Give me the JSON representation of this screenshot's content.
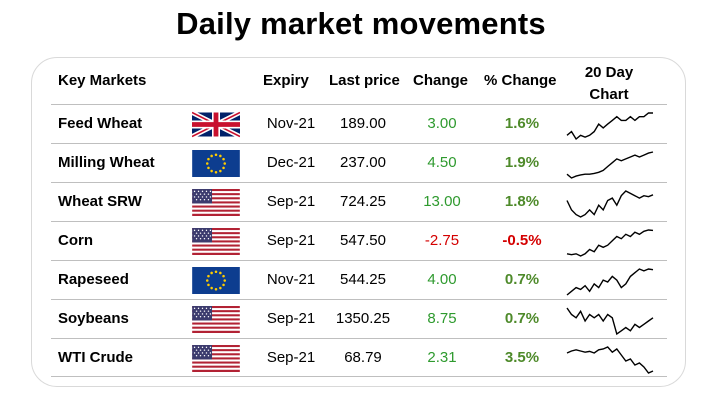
{
  "title": "Daily market movements",
  "headers": {
    "market": "Key Markets",
    "expiry": "Expiry",
    "price": "Last price",
    "change": "Change",
    "pct": "% Change",
    "chart_line1": "20 Day",
    "chart_line2": "Chart"
  },
  "colors": {
    "positive": "#2e9a2e",
    "negative": "#d40000",
    "spark": "#000000"
  },
  "rows": [
    {
      "name": "Feed Wheat",
      "flag": "uk-flag",
      "expiry": "Nov-21",
      "price": "189.00",
      "change": "3.00",
      "pct": "1.6%",
      "direction": "up",
      "trend": [
        2,
        3,
        1,
        2,
        1.5,
        2,
        3,
        5,
        4,
        5,
        6,
        7,
        6,
        6,
        7,
        6,
        7,
        7,
        8,
        8
      ]
    },
    {
      "name": "Milling Wheat",
      "flag": "eu-flag",
      "expiry": "Dec-21",
      "price": "237.00",
      "change": "4.50",
      "pct": "1.9%",
      "direction": "up",
      "trend": [
        2,
        1,
        1.5,
        1.8,
        2,
        2,
        2.2,
        2.5,
        3,
        4,
        5,
        6,
        5.5,
        6,
        6.5,
        7,
        6.5,
        7,
        7.5,
        7.8
      ]
    },
    {
      "name": "Wheat SRW",
      "flag": "us-flag",
      "expiry": "Sep-21",
      "price": "724.25",
      "change": "13.00",
      "pct": "1.8%",
      "direction": "up",
      "trend": [
        6,
        4,
        3,
        2.5,
        3,
        4,
        3,
        5,
        4,
        6,
        6.5,
        5,
        7,
        8,
        7.5,
        7,
        6.5,
        7,
        6.8,
        7.2
      ]
    },
    {
      "name": "Corn",
      "flag": "us-flag",
      "expiry": "Sep-21",
      "price": "547.50",
      "change": "-2.75",
      "pct": "-0.5%",
      "direction": "down",
      "trend": [
        2,
        1.8,
        2,
        1.5,
        2,
        3,
        2.5,
        4,
        3.5,
        4,
        5,
        6,
        5.5,
        6.5,
        6,
        7,
        6.5,
        7.2,
        7.5,
        7.4
      ]
    },
    {
      "name": "Rapeseed",
      "flag": "eu-flag",
      "expiry": "Nov-21",
      "price": "544.25",
      "change": "4.00",
      "pct": "0.7%",
      "direction": "up",
      "trend": [
        1,
        2,
        3,
        2.5,
        3.5,
        2,
        4,
        3,
        5,
        4.5,
        6,
        5,
        3,
        4,
        6,
        7,
        8,
        7.5,
        8,
        7.8
      ]
    },
    {
      "name": "Soybeans",
      "flag": "us-flag",
      "expiry": "Sep-21",
      "price": "1350.25",
      "change": "8.75",
      "pct": "0.7%",
      "direction": "up",
      "trend": [
        7,
        6,
        5.5,
        6.5,
        5,
        6,
        5.5,
        6,
        5,
        6,
        5.5,
        3,
        3.5,
        4,
        3.5,
        4.5,
        4,
        4.5,
        5,
        5.5
      ]
    },
    {
      "name": "WTI Crude",
      "flag": "us-flag",
      "expiry": "Sep-21",
      "price": "68.79",
      "change": "2.31",
      "pct": "3.5%",
      "direction": "up",
      "trend": [
        6,
        6.5,
        6.8,
        6.5,
        6.2,
        6.4,
        6,
        6.8,
        7,
        7.5,
        6.2,
        7,
        5.5,
        4,
        4.5,
        3,
        3.5,
        2.5,
        1,
        1.5
      ]
    }
  ]
}
